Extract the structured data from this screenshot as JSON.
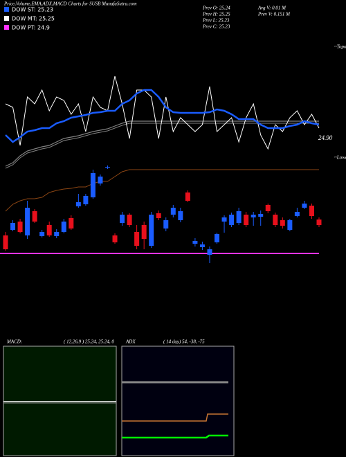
{
  "chart_data": {
    "type": "candlestick",
    "title": "Price,Volume,EMA,ADX,MACD Charts for SUSB MunafaSutra.com",
    "legend": [
      {
        "label": "DOW ST: 25.23",
        "color": "#1a5cff"
      },
      {
        "label": "DOW MT: 25.25",
        "color": "#ffffff"
      },
      {
        "label": "DOW PT: 24.9",
        "color": "#ff33ff"
      }
    ],
    "info": [
      "Prev  O: 25.24",
      "Prev  H: 25.25",
      "Prev  L: 25.23",
      "Prev  C: 25.23"
    ],
    "info2": [
      "Avg V: 0.01 M",
      "Prev  V: 0.151 M"
    ],
    "annotations": [
      "~Topo",
      "~Lowe"
    ],
    "price_label": "24.90",
    "ylim": [
      24.86,
      25.22
    ],
    "up_color": "#1a5cff",
    "down_color": "#e8101c",
    "open": [
      24.926,
      24.934,
      24.946,
      24.926,
      24.961,
      24.925,
      24.941,
      24.925,
      24.931,
      24.951,
      24.968,
      24.971,
      24.981,
      25.001,
      25.024,
      24.926,
      24.944,
      24.956,
      24.931,
      24.941,
      24.911,
      24.958,
      24.936,
      24.956,
      24.948,
      24.988,
      24.914,
      24.909,
      24.898,
      24.916,
      24.946,
      24.941,
      24.944,
      24.956,
      24.952,
      24.953,
      24.97,
      24.956,
      24.948,
      24.934,
      24.954,
      24.966,
      24.969,
      24.949
    ],
    "high": [
      24.931,
      24.948,
      24.95,
      24.976,
      24.964,
      24.934,
      24.946,
      24.935,
      24.95,
      24.955,
      24.986,
      24.986,
      25.021,
      25.014,
      25.027,
      24.929,
      24.96,
      24.958,
      24.941,
      24.946,
      24.96,
      24.962,
      24.952,
      24.97,
      24.966,
      24.991,
      24.922,
      24.917,
      24.91,
      24.93,
      24.955,
      24.959,
      24.966,
      24.96,
      24.96,
      24.962,
      24.972,
      24.959,
      24.952,
      24.95,
      24.966,
      24.976,
      24.972,
      24.952
    ],
    "low": [
      24.904,
      24.932,
      24.929,
      24.921,
      24.944,
      24.923,
      24.924,
      24.922,
      24.929,
      24.934,
      24.966,
      24.969,
      24.979,
      24.998,
      25.022,
      24.914,
      24.94,
      24.938,
      24.906,
      24.906,
      24.908,
      24.948,
      24.932,
      24.952,
      24.945,
      24.974,
      24.91,
      24.905,
      24.886,
      24.914,
      24.93,
      24.938,
      24.941,
      24.938,
      24.94,
      24.94,
      24.958,
      24.938,
      24.936,
      24.932,
      24.952,
      24.964,
      24.95,
      24.938
    ],
    "close": [
      24.906,
      24.944,
      24.931,
      24.966,
      24.946,
      24.931,
      24.926,
      24.931,
      24.946,
      24.936,
      24.974,
      24.983,
      25.016,
      25.011,
      25.025,
      24.916,
      24.956,
      24.941,
      24.911,
      24.921,
      24.956,
      24.951,
      24.948,
      24.966,
      24.961,
      24.976,
      24.918,
      24.913,
      24.906,
      24.928,
      24.952,
      24.956,
      24.961,
      24.941,
      24.956,
      24.957,
      24.961,
      24.941,
      24.94,
      24.948,
      24.96,
      24.972,
      24.954,
      24.941
    ],
    "series": [
      {
        "color": "#808080",
        "values": [
          25.026,
          25.031,
          25.041,
          25.048,
          25.051,
          25.054,
          25.056,
          25.061,
          25.066,
          25.068,
          25.07,
          25.073,
          25.076,
          25.078,
          25.08,
          25.084,
          25.088,
          25.091,
          25.091,
          25.091,
          25.091,
          25.091,
          25.091,
          25.091,
          25.091,
          25.091,
          25.091,
          25.091,
          25.091,
          25.091,
          25.091,
          25.091,
          25.091,
          25.091,
          25.091,
          25.091,
          25.091,
          25.091,
          25.091,
          25.091,
          25.091,
          25.091,
          25.091,
          25.091
        ]
      },
      {
        "color": "#8b4513",
        "values": [
          24.961,
          24.971,
          24.976,
          24.979,
          24.979,
          24.981,
          24.988,
          24.991,
          24.993,
          24.994,
          24.996,
          24.996,
          25.001,
          25.004,
          25.004,
          25.011,
          25.018,
          25.021,
          25.021,
          25.021,
          25.021,
          25.021,
          25.021,
          25.021,
          25.021,
          25.021,
          25.021,
          25.021,
          25.021,
          25.021,
          25.021,
          25.021,
          25.021,
          25.021,
          25.021,
          25.021,
          25.021,
          25.021,
          25.021,
          25.021,
          25.021,
          25.021,
          25.021,
          25.021
        ]
      },
      {
        "color": "#ffffff",
        "values": [
          25.116,
          25.111,
          25.056,
          25.126,
          25.116,
          25.136,
          25.106,
          25.126,
          25.121,
          25.101,
          25.116,
          25.076,
          25.126,
          25.111,
          25.106,
          25.156,
          25.116,
          25.066,
          25.136,
          25.136,
          25.126,
          25.066,
          25.126,
          25.076,
          25.096,
          25.086,
          25.076,
          25.086,
          25.141,
          25.076,
          25.086,
          25.096,
          25.061,
          25.096,
          25.116,
          25.071,
          25.051,
          25.086,
          25.076,
          25.096,
          25.106,
          25.086,
          25.101,
          25.081
        ]
      },
      {
        "color": "#1a5cff",
        "values": [
          25.071,
          25.061,
          25.068,
          25.076,
          25.078,
          25.081,
          25.081,
          25.088,
          25.091,
          25.096,
          25.098,
          25.1,
          25.103,
          25.104,
          25.106,
          25.106,
          25.116,
          25.121,
          25.131,
          25.136,
          25.136,
          25.126,
          25.111,
          25.104,
          25.103,
          25.103,
          25.103,
          25.103,
          25.104,
          25.108,
          25.106,
          25.101,
          25.094,
          25.094,
          25.094,
          25.086,
          25.081,
          25.081,
          25.081,
          25.084,
          25.086,
          25.091,
          25.088,
          25.086
        ]
      }
    ],
    "pivot": 24.9,
    "pivot_color": "#ff33ff",
    "macd": {
      "label": "MACD:",
      "params": "( 12,26,9 ) 25.24, 25.24, 0"
    },
    "adx": {
      "label": "ADX",
      "params": "( 14  day) 54, -38, -75"
    }
  }
}
